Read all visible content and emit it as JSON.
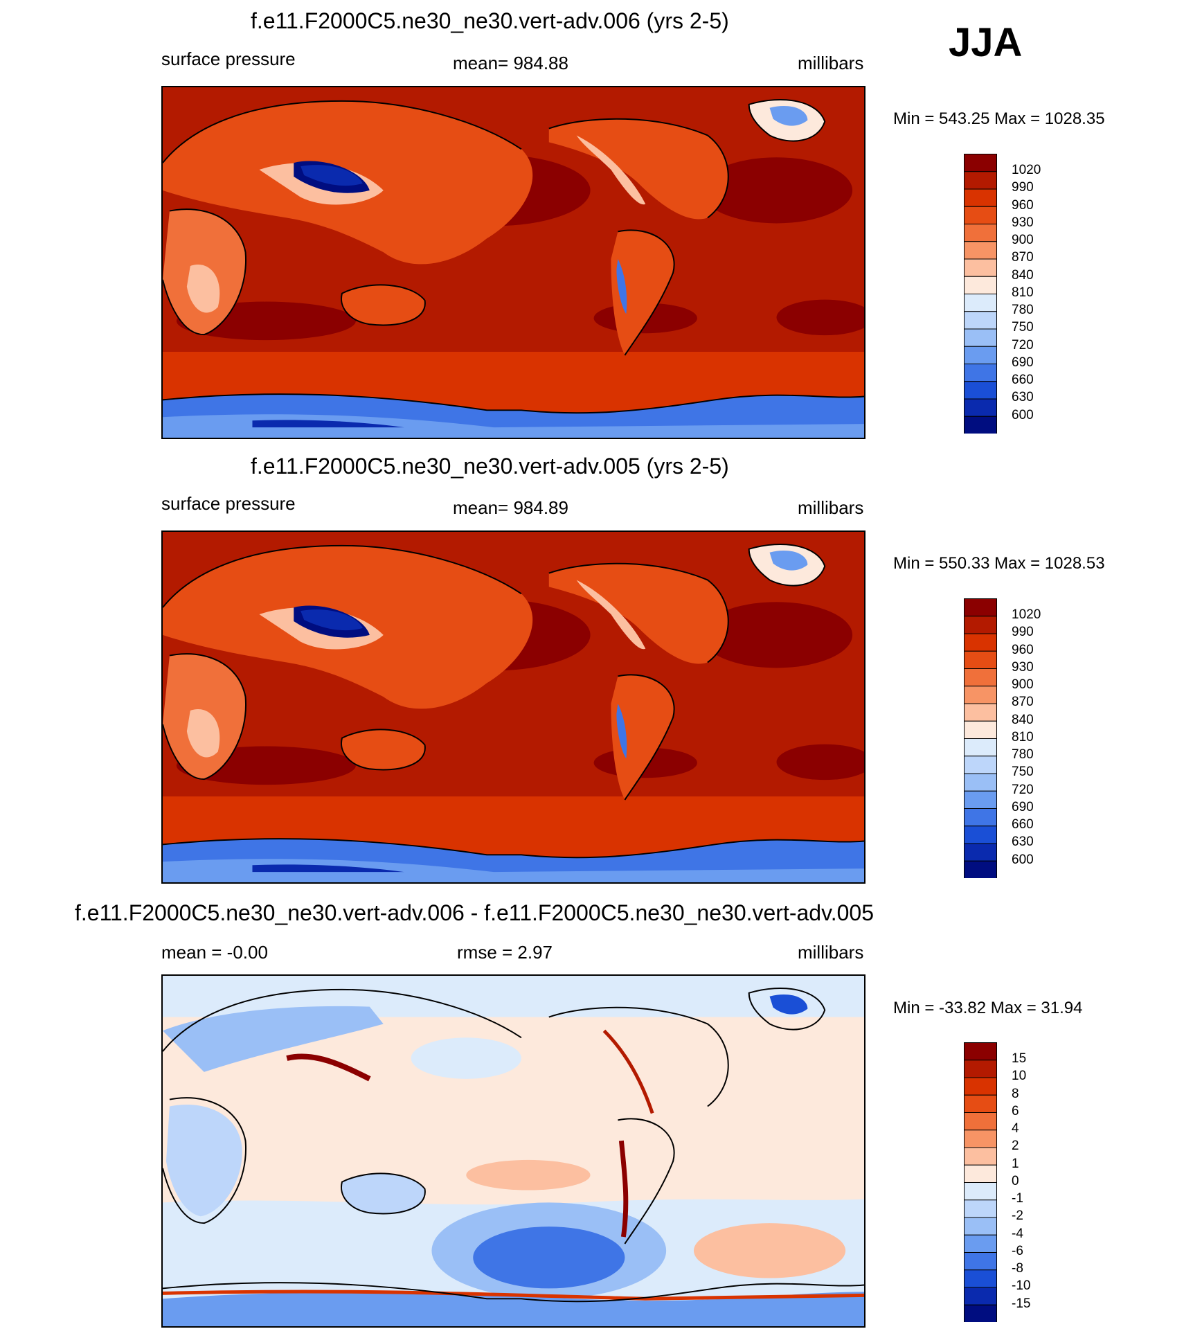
{
  "season_label": "JJA",
  "panels": [
    {
      "title": "f.e11.F2000C5.ne30_ne30.vert-adv.006 (yrs 2-5)",
      "left_text": "surface pressure",
      "center_text": "mean= 984.88",
      "right_text": "millibars",
      "minmax": "Min = 543.25 Max = 1028.35",
      "legend_labels": [
        "1020",
        "990",
        "960",
        "930",
        "900",
        "870",
        "840",
        "810",
        "780",
        "750",
        "720",
        "690",
        "660",
        "630",
        "600"
      ]
    },
    {
      "title": "f.e11.F2000C5.ne30_ne30.vert-adv.005 (yrs 2-5)",
      "left_text": "surface pressure",
      "center_text": "mean= 984.89",
      "right_text": "millibars",
      "minmax": "Min = 550.33 Max = 1028.53",
      "legend_labels": [
        "1020",
        "990",
        "960",
        "930",
        "900",
        "870",
        "840",
        "810",
        "780",
        "750",
        "720",
        "690",
        "660",
        "630",
        "600"
      ]
    },
    {
      "title": "f.e11.F2000C5.ne30_ne30.vert-adv.006 - f.e11.F2000C5.ne30_ne30.vert-adv.005",
      "left_text": "mean =  -0.00",
      "center_text": "rmse =   2.97",
      "right_text": "millibars",
      "minmax": "Min = -33.82 Max =  31.94",
      "legend_labels": [
        "15",
        "10",
        "8",
        "6",
        "4",
        "2",
        "1",
        "0",
        "-1",
        "-2",
        "-4",
        "-6",
        "-8",
        "-10",
        "-15"
      ]
    }
  ],
  "colors": {
    "abs_scale": [
      "#8b0000",
      "#b31a00",
      "#d93300",
      "#e64d14",
      "#f0703a",
      "#f79465",
      "#fcbfa0",
      "#fde9dc",
      "#dcebfb",
      "#bdd6fa",
      "#9abff6",
      "#6a9cf0",
      "#3f75e6",
      "#1a4fd6",
      "#0a2aae",
      "#000d80"
    ],
    "diff_scale": [
      "#8b0000",
      "#b31a00",
      "#d93300",
      "#e64d14",
      "#f0703a",
      "#f79465",
      "#fcbfa0",
      "#fde9dc",
      "#dcebfb",
      "#bdd6fa",
      "#9abff6",
      "#6a9cf0",
      "#3f75e6",
      "#1a4fd6",
      "#0a2aae",
      "#000d80"
    ]
  }
}
